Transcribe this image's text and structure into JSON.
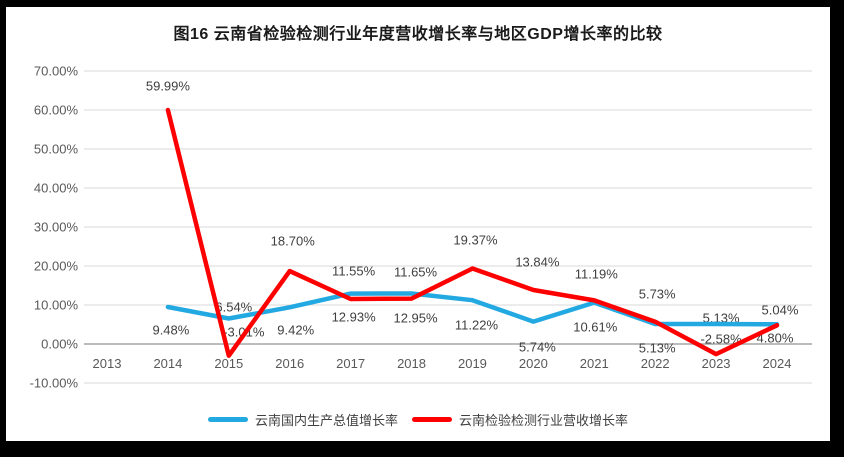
{
  "frame": {
    "border_color": "#000000",
    "page_background": "#ffffff"
  },
  "chart_data": {
    "type": "line",
    "title": "图16  云南省检验检测行业年度营收增长率与地区GDP增长率的比较",
    "categories": [
      "2013",
      "2014",
      "2015",
      "2016",
      "2017",
      "2018",
      "2019",
      "2020",
      "2021",
      "2022",
      "2023",
      "2024"
    ],
    "series": [
      {
        "name": "云南国内生产总值增长率",
        "slug": "yunnan-gdp-growth",
        "color": "#23A9E2",
        "start_category_index": 1,
        "values": [
          9.48,
          6.54,
          9.42,
          12.93,
          12.95,
          11.22,
          5.74,
          10.61,
          5.13,
          5.13,
          5.04
        ],
        "labels": [
          "9.48%",
          "6.54%",
          "9.42%",
          "12.93%",
          "12.95%",
          "11.22%",
          "5.74%",
          "10.61%",
          "5.13%",
          "5.13%",
          "5.04%"
        ],
        "label_offsets": [
          [
            3,
            23
          ],
          [
            5,
            -11
          ],
          [
            6,
            23
          ],
          [
            3,
            23
          ],
          [
            4,
            25
          ],
          [
            4,
            25
          ],
          [
            4,
            25
          ],
          [
            1,
            24
          ],
          [
            2,
            24
          ],
          [
            5,
            -6
          ],
          [
            3,
            -14
          ]
        ]
      },
      {
        "name": "云南检验检测行业营收增长率",
        "slug": "yunnan-inspection-revenue-growth",
        "color": "#FE0000",
        "start_category_index": 1,
        "values": [
          59.99,
          -3.01,
          18.7,
          11.55,
          11.65,
          19.37,
          13.84,
          11.19,
          5.73,
          -2.58,
          4.8
        ],
        "labels": [
          "59.99%",
          "-3.01%",
          "18.70%",
          "11.55%",
          "11.65%",
          "19.37%",
          "13.84%",
          "11.19%",
          "5.73%",
          "-2.58%",
          "4.80%"
        ],
        "label_offsets": [
          [
            0,
            -24
          ],
          [
            15,
            -24
          ],
          [
            3,
            -30
          ],
          [
            3,
            -28
          ],
          [
            4,
            -27
          ],
          [
            3,
            -28
          ],
          [
            4,
            -28
          ],
          [
            2,
            -26
          ],
          [
            2,
            -28
          ],
          [
            5,
            -15
          ],
          [
            -2,
            13
          ]
        ]
      }
    ],
    "y_axis": {
      "min": -10,
      "max": 70,
      "step": 10,
      "tick_labels": [
        "70.00%",
        "60.00%",
        "50.00%",
        "40.00%",
        "30.00%",
        "20.00%",
        "10.00%",
        "0.00%",
        "-10.00%"
      ]
    },
    "grid": true,
    "gridline_color": "#D9D9D9",
    "zero_axis_color": "#A6A6A6",
    "legend_position": "bottom"
  }
}
